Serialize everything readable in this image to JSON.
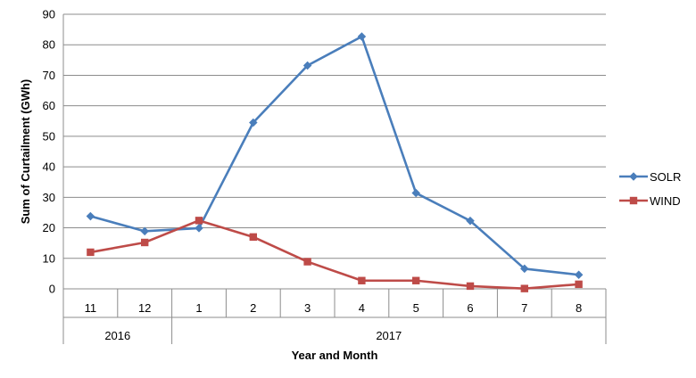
{
  "chart_data": {
    "type": "line",
    "categories": [
      "11",
      "12",
      "1",
      "2",
      "3",
      "4",
      "5",
      "6",
      "7",
      "8"
    ],
    "category_groups": [
      {
        "label": "2016",
        "count": 2
      },
      {
        "label": "2017",
        "count": 8
      }
    ],
    "series": [
      {
        "name": "SOLR",
        "color": "#4a7ebb",
        "marker": "diamond",
        "values": [
          23.8,
          18.9,
          19.9,
          54.5,
          73.2,
          82.7,
          31.4,
          22.3,
          6.6,
          4.6
        ]
      },
      {
        "name": "WIND",
        "color": "#be4b48",
        "marker": "square",
        "values": [
          12.0,
          15.2,
          22.4,
          17.0,
          8.9,
          2.7,
          2.7,
          0.9,
          0.1,
          1.5
        ]
      }
    ],
    "title": "",
    "xlabel": "Year and Month",
    "ylabel": "Sum of Curtailment (GWh)",
    "ylim": [
      0,
      90
    ],
    "yticks": [
      "0",
      "10",
      "20",
      "30",
      "40",
      "50",
      "60",
      "70",
      "80",
      "90"
    ],
    "grid": true,
    "legend_position": "right"
  }
}
